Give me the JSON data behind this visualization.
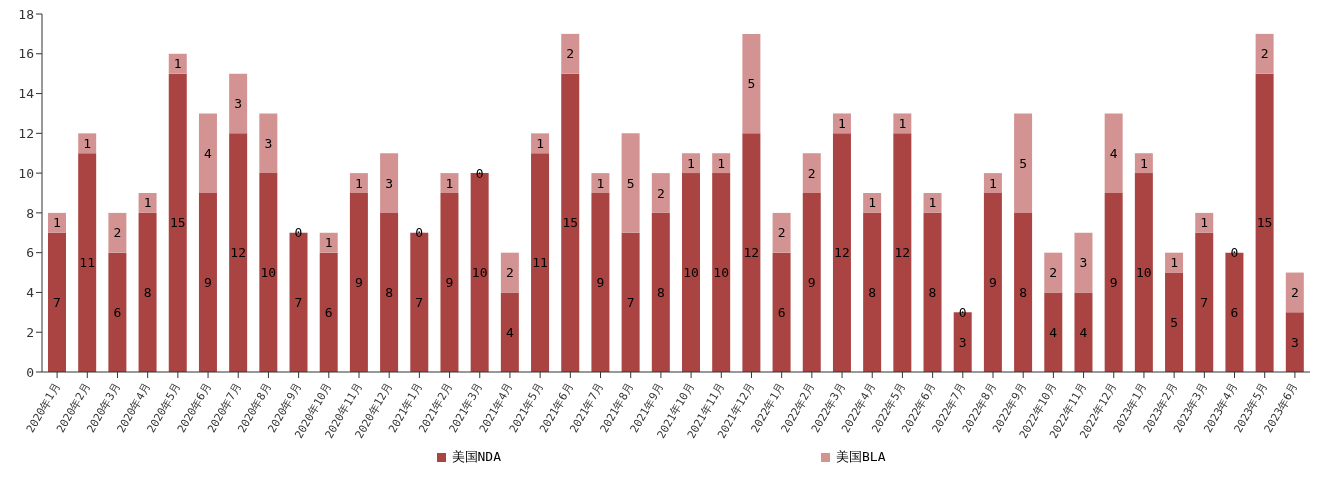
{
  "chart_data": {
    "type": "bar",
    "stacked": true,
    "data_labels": true,
    "grid": false,
    "legend": "bottom",
    "categories": [
      "2020年1月",
      "2020年2月",
      "2020年3月",
      "2020年4月",
      "2020年5月",
      "2020年6月",
      "2020年7月",
      "2020年8月",
      "2020年9月",
      "2020年10月",
      "2020年11月",
      "2020年12月",
      "2021年1月",
      "2021年2月",
      "2021年3月",
      "2021年4月",
      "2021年5月",
      "2021年6月",
      "2021年7月",
      "2021年8月",
      "2021年9月",
      "2021年10月",
      "2021年11月",
      "2021年12月",
      "2022年1月",
      "2022年2月",
      "2022年3月",
      "2022年4月",
      "2022年5月",
      "2022年6月",
      "2022年7月",
      "2022年8月",
      "2022年9月",
      "2022年10月",
      "2022年11月",
      "2022年12月",
      "2023年1月",
      "2023年2月",
      "2023年3月",
      "2023年4月",
      "2023年5月",
      "2023年6月"
    ],
    "ylim": [
      0,
      18
    ],
    "yticks": [
      0,
      2,
      4,
      6,
      8,
      10,
      12,
      14,
      16,
      18
    ],
    "series": [
      {
        "name": "美国NDA",
        "color": "#a94442",
        "values": [
          7,
          11,
          6,
          8,
          15,
          9,
          12,
          10,
          7,
          6,
          9,
          8,
          7,
          9,
          10,
          4,
          11,
          15,
          9,
          7,
          8,
          10,
          10,
          12,
          6,
          9,
          12,
          8,
          12,
          8,
          3,
          9,
          8,
          4,
          4,
          9,
          10,
          5,
          7,
          6,
          15,
          3
        ]
      },
      {
        "name": "美国BLA",
        "color": "#d39393",
        "values": [
          1,
          1,
          2,
          1,
          1,
          4,
          3,
          3,
          0,
          1,
          1,
          3,
          0,
          1,
          0,
          2,
          1,
          2,
          1,
          5,
          2,
          1,
          1,
          5,
          2,
          2,
          1,
          1,
          1,
          1,
          0,
          1,
          5,
          2,
          3,
          4,
          1,
          1,
          1,
          0,
          2,
          2
        ]
      }
    ]
  }
}
